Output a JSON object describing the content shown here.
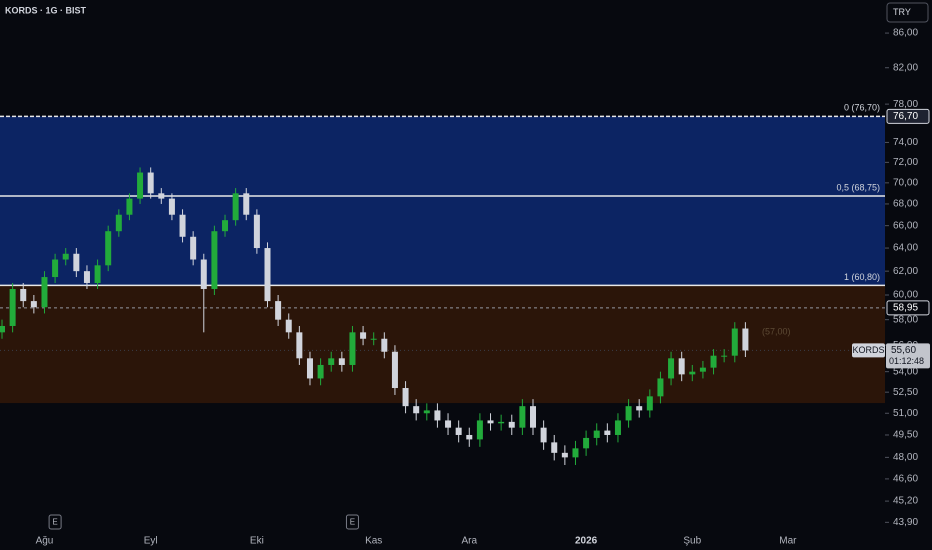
{
  "header": {
    "symbol": "KORDS · 1G · BIST",
    "currency": "TRY"
  },
  "chart_data": {
    "type": "candlestick",
    "categories": [
      null,
      null,
      null,
      null,
      "Ağu",
      null,
      null,
      null,
      null,
      null,
      null,
      null,
      null,
      null,
      "Eyl",
      null,
      null,
      null,
      null,
      null,
      null,
      null,
      null,
      null,
      "Eki",
      null,
      null,
      null,
      null,
      null,
      null,
      null,
      null,
      null,
      null,
      "Kas",
      null,
      null,
      null,
      null,
      null,
      null,
      null,
      null,
      "Ara",
      null,
      null,
      null,
      null,
      null,
      null,
      null,
      null,
      null,
      null,
      "2026",
      null,
      null,
      null,
      null,
      null,
      null,
      null,
      null,
      null,
      "Şub",
      null,
      null,
      null,
      null,
      null,
      null,
      null,
      null,
      "Mar"
    ],
    "open": [
      57,
      57.5,
      60.5,
      59.5,
      59,
      61.5,
      63,
      63.5,
      62,
      61,
      62.5,
      65.5,
      67,
      68.5,
      71,
      69,
      68.5,
      67,
      65,
      63,
      60.5,
      65.5,
      66.5,
      69,
      67,
      64,
      59.5,
      58,
      57,
      55,
      53.5,
      54.5,
      55,
      54.5,
      57,
      56.5,
      56.5,
      55.5,
      52.8,
      51.5,
      51,
      51.2,
      50.5,
      50,
      49.5,
      49.2,
      50.5,
      50.3,
      50.4,
      50,
      51.5,
      50,
      49,
      48.3,
      48,
      48.6,
      49.3,
      49.8,
      49.5,
      50.5,
      51.5,
      51.2,
      52.2,
      53.5,
      55,
      53.8,
      54,
      54.3,
      55.2,
      55.2,
      57.3,
      null,
      null,
      null,
      null
    ],
    "high": [
      58,
      61,
      61,
      60,
      62,
      63.5,
      64,
      64,
      62.5,
      63,
      66,
      67.5,
      69,
      71.5,
      71.5,
      69.5,
      69,
      67.5,
      65.5,
      63.5,
      66,
      67,
      69.5,
      69.5,
      67.5,
      64.5,
      60,
      58.5,
      57.5,
      55.5,
      55,
      55.5,
      55.5,
      57.5,
      57.5,
      57,
      57,
      56,
      53.3,
      52,
      51.7,
      51.7,
      51,
      50.5,
      50,
      51,
      51,
      50.9,
      50.9,
      52,
      52,
      50.5,
      49.5,
      48.8,
      49.1,
      49.8,
      50.3,
      50.3,
      51,
      52,
      52,
      52.7,
      54,
      55.5,
      55.5,
      54.5,
      54.8,
      55.7,
      55.7,
      57.8,
      57.8,
      null,
      null,
      null,
      null
    ],
    "low": [
      56.5,
      57,
      59,
      58.5,
      58.5,
      61,
      62.5,
      61.5,
      60.5,
      60.5,
      62,
      65,
      66.5,
      68,
      68.5,
      68,
      66.5,
      64.5,
      62.5,
      57,
      60,
      65,
      66,
      66.5,
      63.5,
      59,
      57.5,
      56.5,
      54.5,
      53,
      53,
      54,
      54,
      54,
      56,
      56,
      55,
      52.3,
      51,
      50.5,
      50.5,
      50,
      49.5,
      49,
      48.7,
      48.7,
      49.8,
      49.8,
      49.5,
      49.5,
      49.5,
      48.5,
      47.8,
      47.5,
      47.5,
      48.1,
      48.8,
      49,
      49,
      50,
      50.7,
      50.7,
      51.7,
      53,
      53.3,
      53.3,
      53.5,
      53.8,
      54.7,
      54.7,
      55.1,
      null,
      null,
      null,
      null
    ],
    "close": [
      57.5,
      60.5,
      59.5,
      59,
      61.5,
      63,
      63.5,
      62,
      61,
      62.5,
      65.5,
      67,
      68.5,
      71,
      69,
      68.5,
      67,
      65,
      63,
      60.5,
      65.5,
      66.5,
      69,
      67,
      64,
      59.5,
      58,
      57,
      55,
      53.5,
      54.5,
      55,
      54.5,
      57,
      56.5,
      56.5,
      55.5,
      52.8,
      51.5,
      51,
      51.2,
      50.5,
      50,
      49.5,
      49.2,
      50.5,
      50.3,
      50.4,
      50,
      51.5,
      50,
      49,
      48.3,
      48,
      48.6,
      49.3,
      49.8,
      49.5,
      50.5,
      51.5,
      51.2,
      52.2,
      53.5,
      55,
      53.8,
      54,
      54.3,
      55.2,
      55.2,
      57.3,
      55.6,
      null,
      null,
      null,
      null
    ],
    "up_color": "#22ab3b",
    "down_color": "#d1d4dc",
    "ylim": [
      43.44,
      90
    ],
    "log_scale": true,
    "yticks": [
      {
        "value": 86,
        "label": "86,00"
      },
      {
        "value": 82,
        "label": "82,00"
      },
      {
        "value": 78,
        "label": "78,00"
      },
      {
        "value": 74,
        "label": "74,00"
      },
      {
        "value": 72,
        "label": "72,00"
      },
      {
        "value": 70,
        "label": "70,00"
      },
      {
        "value": 68,
        "label": "68,00"
      },
      {
        "value": 66,
        "label": "66,00"
      },
      {
        "value": 64,
        "label": "64,00"
      },
      {
        "value": 62,
        "label": "62,00"
      },
      {
        "value": 60,
        "label": "60,00"
      },
      {
        "value": 58,
        "label": "58,00"
      },
      {
        "value": 56,
        "label": "56,00"
      },
      {
        "value": 54,
        "label": "54,00"
      },
      {
        "value": 52.5,
        "label": "52,50"
      },
      {
        "value": 51,
        "label": "51,00"
      },
      {
        "value": 49.5,
        "label": "49,50"
      },
      {
        "value": 48,
        "label": "48,00"
      },
      {
        "value": 46.6,
        "label": "46,60"
      },
      {
        "value": 45.2,
        "label": "45,20"
      },
      {
        "value": 43.9,
        "label": "43,90"
      }
    ],
    "levels": [
      {
        "value": 76.7,
        "label": "0 (76,70)",
        "axis_label": "76,70"
      },
      {
        "value": 68.75,
        "label": "0,5 (68,75)"
      },
      {
        "value": 60.8,
        "label": "1 (60,80)"
      }
    ],
    "zone_colors": [
      "#0c2463",
      "#2b1509"
    ],
    "zone_bottom": 51.72,
    "reference_line": {
      "value": 58.95,
      "label": "58,95"
    },
    "last_price": {
      "value": 55.6,
      "label": "55,60",
      "countdown": "01:12:48",
      "symbol_tag": "KORDS"
    },
    "annotation": {
      "value": 57,
      "label": "(57,00)"
    },
    "earnings": [
      {
        "category_index": 5,
        "label": "E"
      },
      {
        "category_index": 33,
        "label": "E"
      }
    ]
  }
}
